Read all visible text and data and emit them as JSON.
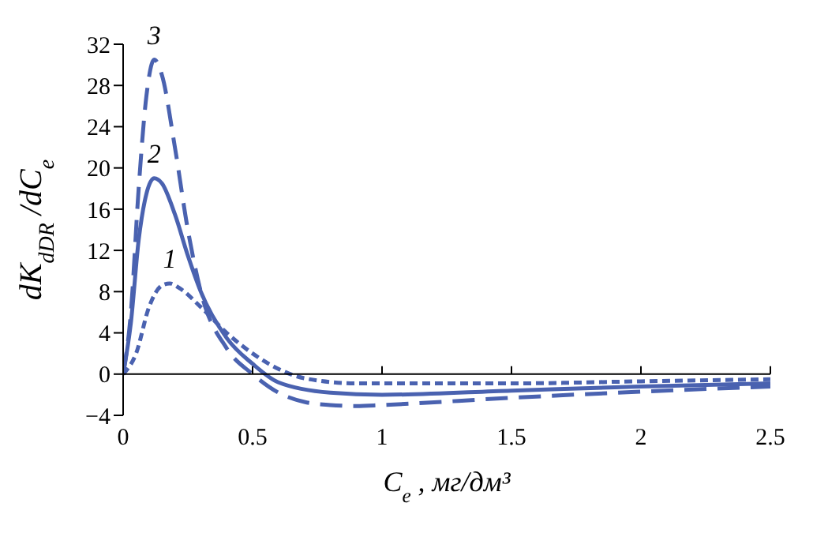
{
  "chart_data": {
    "type": "line",
    "xlabel": "C$_{e}$ , мг/дм³",
    "ylabel": "dK$_{dDR}$ /dC$_{e}$",
    "xlim": [
      0,
      2.5
    ],
    "xticks": [
      0,
      0.5,
      1,
      1.5,
      2,
      2.5
    ],
    "ylim": [
      -4,
      32
    ],
    "yticks": [
      {
        "value": -4,
        "label": "−4"
      },
      0,
      4,
      8,
      12,
      16,
      20,
      24,
      28,
      32
    ],
    "grid": false,
    "legend": false,
    "marker": "none",
    "series": [
      {
        "name": "1",
        "color": "#4a62b0",
        "line_style": "dotted",
        "x": [
          0,
          0.05,
          0.1,
          0.15,
          0.18,
          0.22,
          0.3,
          0.4,
          0.5,
          0.6,
          0.7,
          0.9,
          1.5,
          2,
          2.5
        ],
        "values": [
          0,
          2,
          6.5,
          8.6,
          8.8,
          8.3,
          6.5,
          4,
          2,
          0.5,
          -0.4,
          -0.9,
          -0.9,
          -0.7,
          -0.5
        ]
      },
      {
        "name": "2",
        "color": "#4a62b0",
        "line_style": "solid",
        "x": [
          0,
          0.03,
          0.06,
          0.09,
          0.12,
          0.15,
          0.2,
          0.25,
          0.3,
          0.4,
          0.5,
          0.6,
          0.8,
          1,
          1.5,
          2,
          2.5
        ],
        "values": [
          0,
          5,
          13,
          17.5,
          19,
          18.5,
          15.5,
          11.5,
          8,
          3.5,
          1,
          -0.8,
          -1.8,
          -2,
          -1.6,
          -1.2,
          -0.9
        ]
      },
      {
        "name": "3",
        "color": "#4a62b0",
        "line_style": "dashed",
        "x": [
          0,
          0.03,
          0.06,
          0.09,
          0.12,
          0.15,
          0.2,
          0.25,
          0.3,
          0.4,
          0.5,
          0.6,
          0.7,
          0.8,
          0.9,
          1,
          1.5,
          2,
          2.5
        ],
        "values": [
          0,
          6,
          18,
          27,
          30.5,
          29,
          22,
          14,
          8,
          2.5,
          0,
          -1.8,
          -2.7,
          -3,
          -3.1,
          -3,
          -2.3,
          -1.7,
          -1.2
        ]
      }
    ]
  }
}
